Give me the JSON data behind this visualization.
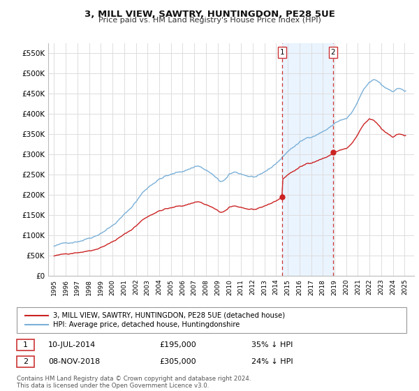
{
  "title": "3, MILL VIEW, SAWTRY, HUNTINGDON, PE28 5UE",
  "subtitle": "Price paid vs. HM Land Registry's House Price Index (HPI)",
  "background_color": "#ffffff",
  "plot_bg_color": "#ffffff",
  "grid_color": "#dddddd",
  "hpi_color": "#7ab0d8",
  "price_color": "#cc2222",
  "dashed_line_color": "#cc3333",
  "shade_color": "#ddeeff",
  "ylim": [
    0,
    575000
  ],
  "yticks": [
    0,
    50000,
    100000,
    150000,
    200000,
    250000,
    300000,
    350000,
    400000,
    450000,
    500000,
    550000
  ],
  "ytick_labels": [
    "£0",
    "£50K",
    "£100K",
    "£150K",
    "£200K",
    "£250K",
    "£300K",
    "£350K",
    "£400K",
    "£450K",
    "£500K",
    "£550K"
  ],
  "sale1_date": 2014.53,
  "sale1_price": 195000,
  "sale1_label": "1",
  "sale2_date": 2018.86,
  "sale2_price": 305000,
  "sale2_label": "2",
  "legend_line1": "3, MILL VIEW, SAWTRY, HUNTINGDON, PE28 5UE (detached house)",
  "legend_line2": "HPI: Average price, detached house, Huntingdonshire",
  "table_row1": [
    "1",
    "10-JUL-2014",
    "£195,000",
    "35% ↓ HPI"
  ],
  "table_row2": [
    "2",
    "08-NOV-2018",
    "£305,000",
    "24% ↓ HPI"
  ],
  "footer": "Contains HM Land Registry data © Crown copyright and database right 2024.\nThis data is licensed under the Open Government Licence v3.0.",
  "xlim_start": 1994.5,
  "xlim_end": 2025.8
}
